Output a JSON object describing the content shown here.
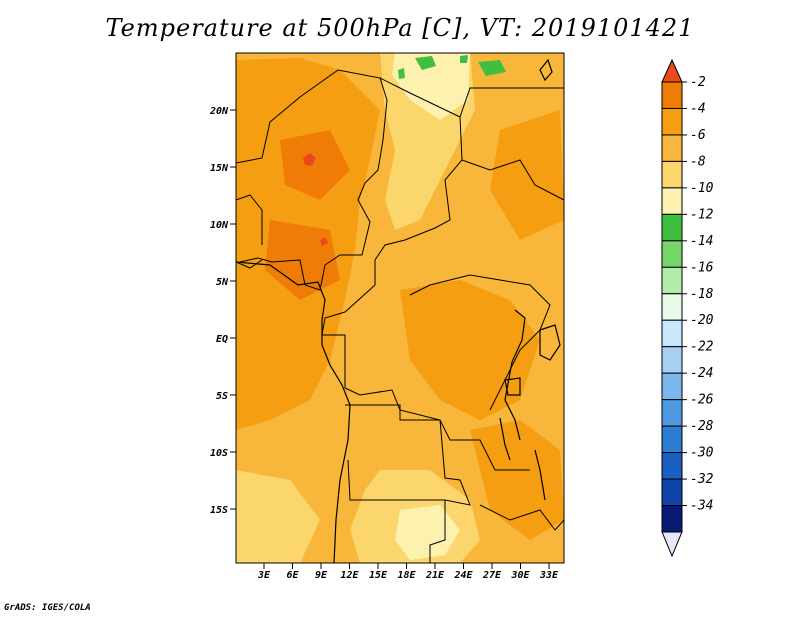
{
  "title": "Temperature at 500hPa [C], VT: 2019101421",
  "credit": "GrADS: IGES/COLA",
  "lat_labels": [
    "20N",
    "15N",
    "10N",
    "5N",
    "EQ",
    "5S",
    "10S",
    "15S"
  ],
  "lon_labels": [
    "3E",
    "6E",
    "9E",
    "12E",
    "15E",
    "18E",
    "21E",
    "24E",
    "27E",
    "30E",
    "33E"
  ],
  "colorbar": {
    "labels": [
      "-2",
      "-4",
      "-6",
      "-8",
      "-10",
      "-12",
      "-14",
      "-16",
      "-18",
      "-20",
      "-22",
      "-24",
      "-26",
      "-28",
      "-30",
      "-32",
      "-34"
    ],
    "colors": [
      "#e84a1c",
      "#f07c08",
      "#f59e12",
      "#f8b73a",
      "#fbd66c",
      "#fdf1b0",
      "#3fbe3f",
      "#74d66a",
      "#b2ebaa",
      "#e8fae8",
      "#c9e7fb",
      "#a6d1f4",
      "#7ab7ed",
      "#4f99e0",
      "#2d7bd3",
      "#1b5fc0",
      "#0e44a6",
      "#091a73",
      "#e6e6ff"
    ]
  },
  "map_colors": {
    "base": "#f8b73a",
    "warm": "#f59e12",
    "warmer": "#f07c08",
    "hot": "#e84a1c",
    "cool": "#fbd66c",
    "cooler": "#fdf1b0",
    "green": "#3fbe3f"
  }
}
